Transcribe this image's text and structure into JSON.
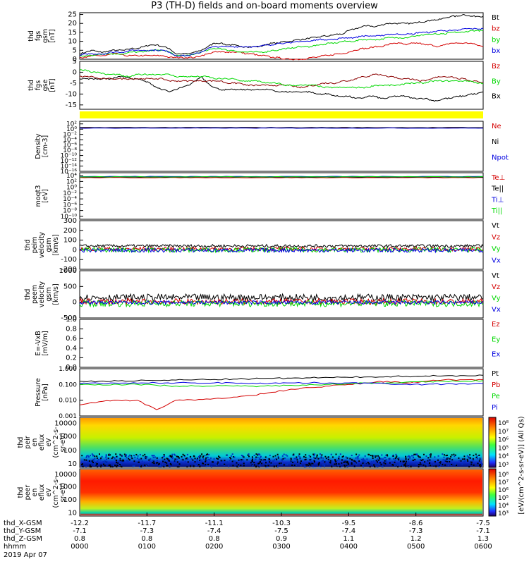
{
  "title": "P3 (TH-D) fields and on-board moments overview",
  "colors": {
    "black": "#000000",
    "red": "#d40000",
    "green": "#00d800",
    "blue": "#0000e0",
    "yellow": "#ffff00",
    "darkred": "#8b0000"
  },
  "chart_data": [
    {
      "id": "fgs-gsm",
      "type": "line",
      "ylabel": [
        "thd",
        "fgs",
        "gsm",
        "[nT]"
      ],
      "ylim": [
        0,
        26
      ],
      "yticks": [
        "0",
        "5",
        "10",
        "15",
        "20",
        "25"
      ],
      "legend": [
        {
          "name": "Bt",
          "color": "black"
        },
        {
          "name": "bz",
          "color": "red"
        },
        {
          "name": "by",
          "color": "green"
        },
        {
          "name": "bx",
          "color": "blue"
        }
      ],
      "series": [
        {
          "name": "Bt",
          "color": "black",
          "values": [
            3,
            4,
            5,
            4,
            4,
            5,
            5,
            5,
            6,
            6,
            7,
            8,
            8,
            7,
            6,
            3,
            3,
            3,
            4,
            5,
            7,
            9,
            9,
            8,
            8,
            7,
            7,
            7,
            7,
            8,
            9,
            9,
            10,
            10,
            11,
            11,
            12,
            12,
            13,
            13,
            14,
            14,
            16,
            17,
            18,
            19,
            18,
            19,
            20,
            20,
            20,
            20,
            20,
            21,
            21,
            22,
            22,
            23,
            24,
            24,
            25,
            24,
            24,
            24
          ]
        },
        {
          "name": "bz",
          "color": "red",
          "values": [
            1,
            1,
            2,
            2,
            2,
            3,
            3,
            2,
            2,
            2,
            2,
            2,
            2,
            2,
            1,
            1,
            1,
            1,
            1,
            2,
            3,
            4,
            4,
            4,
            4,
            4,
            3,
            3,
            2,
            2,
            1,
            1,
            0,
            0,
            0,
            0,
            1,
            1,
            2,
            2,
            3,
            3,
            4,
            5,
            6,
            6,
            7,
            7,
            8,
            9,
            9,
            8,
            9,
            9,
            8,
            8,
            7,
            8,
            9,
            9,
            9,
            9,
            8,
            7
          ]
        },
        {
          "name": "by",
          "color": "green",
          "values": [
            2,
            2,
            2,
            3,
            3,
            3,
            3,
            3,
            4,
            4,
            4,
            5,
            5,
            5,
            4,
            2,
            2,
            2,
            3,
            4,
            5,
            6,
            6,
            5,
            5,
            4,
            4,
            4,
            4,
            4,
            5,
            5,
            6,
            6,
            7,
            7,
            7,
            8,
            8,
            9,
            9,
            10,
            10,
            10,
            11,
            11,
            11,
            11,
            12,
            12,
            12,
            12,
            13,
            13,
            14,
            14,
            14,
            14,
            15,
            15,
            15,
            16,
            16,
            16
          ]
        },
        {
          "name": "bx",
          "color": "blue",
          "values": [
            2,
            3,
            3,
            3,
            3,
            4,
            4,
            4,
            5,
            5,
            5,
            5,
            5,
            5,
            4,
            2,
            2,
            2,
            3,
            4,
            6,
            7,
            7,
            7,
            7,
            7,
            7,
            7,
            7,
            8,
            8,
            9,
            9,
            9,
            10,
            10,
            10,
            11,
            11,
            11,
            11,
            12,
            12,
            12,
            13,
            13,
            13,
            13,
            14,
            14,
            14,
            14,
            14,
            15,
            15,
            15,
            16,
            16,
            16,
            16,
            17,
            17,
            17,
            17
          ]
        }
      ]
    },
    {
      "id": "fgs-gse",
      "type": "line",
      "ylabel": [
        "thd",
        "fgs",
        "gse",
        "[nT]"
      ],
      "ylim": [
        -17,
        5
      ],
      "yticks": [
        "-15",
        "-10",
        "-5",
        "0",
        "5"
      ],
      "legend": [
        {
          "name": "Bz",
          "color": "red"
        },
        {
          "name": "By",
          "color": "green"
        },
        {
          "name": "Bx",
          "color": "black"
        }
      ],
      "series": [
        {
          "name": "Bx",
          "color": "black",
          "values": [
            -3,
            -3,
            -3,
            -3,
            -3,
            -3,
            -2,
            -2,
            -3,
            -3,
            -4,
            -5,
            -7,
            -8,
            -9,
            -8,
            -7,
            -6,
            -4,
            -2,
            -5,
            -7,
            -8,
            -8,
            -8,
            -8,
            -8,
            -8,
            -8,
            -8,
            -8,
            -9,
            -9,
            -9,
            -9,
            -9,
            -9,
            -10,
            -10,
            -10,
            -11,
            -11,
            -11,
            -12,
            -12,
            -11,
            -11,
            -12,
            -12,
            -11,
            -11,
            -11,
            -12,
            -12,
            -12,
            -13,
            -13,
            -12,
            -12,
            -11,
            -11,
            -10,
            -10,
            -9
          ]
        },
        {
          "name": "Bz",
          "color": "darkred",
          "values": [
            -2,
            -2,
            -2,
            -3,
            -3,
            -3,
            -3,
            -3,
            -3,
            -3,
            -3,
            -3,
            -3,
            -3,
            -4,
            -4,
            -4,
            -4,
            -4,
            -4,
            -4,
            -4,
            -4,
            -5,
            -5,
            -5,
            -6,
            -6,
            -6,
            -6,
            -6,
            -6,
            -6,
            -6,
            -7,
            -7,
            -6,
            -6,
            -5,
            -5,
            -5,
            -4,
            -4,
            -3,
            -2,
            -2,
            -1,
            -1,
            -2,
            -2,
            -3,
            -3,
            -3,
            -4,
            -4,
            -3,
            -2,
            -2,
            -2,
            -3,
            -3,
            -4,
            -4,
            -5
          ]
        },
        {
          "name": "By",
          "color": "green",
          "values": [
            1,
            1,
            0,
            0,
            -1,
            -1,
            -1,
            -2,
            -2,
            -1,
            -1,
            -1,
            -1,
            -1,
            -1,
            -2,
            -2,
            -2,
            -2,
            -2,
            -2,
            -3,
            -3,
            -3,
            -3,
            -4,
            -4,
            -4,
            -4,
            -5,
            -5,
            -5,
            -6,
            -6,
            -6,
            -6,
            -6,
            -6,
            -7,
            -7,
            -7,
            -7,
            -7,
            -7,
            -7,
            -7,
            -6,
            -6,
            -6,
            -6,
            -6,
            -5,
            -5,
            -5,
            -5,
            -4,
            -4,
            -4,
            -4,
            -4,
            -4,
            -4,
            -5,
            -5
          ]
        }
      ]
    },
    {
      "id": "yellow-bar",
      "type": "bar"
    },
    {
      "id": "density",
      "type": "line",
      "scale": "log",
      "ylabel": [
        "Density",
        "[cm-3]"
      ],
      "ylim": [
        -16,
        3
      ],
      "yticks": [
        "10²",
        "10⁰",
        "10⁻²",
        "10⁻⁴",
        "10⁻⁶",
        "10⁻⁸",
        "10⁻¹⁰",
        "10⁻¹²",
        "10⁻¹⁴",
        "10⁻¹⁶"
      ],
      "ytickvals": [
        2,
        0,
        -2,
        -4,
        -6,
        -8,
        -10,
        -12,
        -14,
        -16
      ],
      "legend": [
        {
          "name": "Ne",
          "color": "red"
        },
        {
          "name": "Ni",
          "color": "black"
        },
        {
          "name": "Npot",
          "color": "blue"
        }
      ],
      "series": [
        {
          "name": "Ne",
          "color": "red",
          "values": [
            0.5
          ]
        },
        {
          "name": "Ni",
          "color": "black",
          "values": [
            0.6
          ]
        },
        {
          "name": "Npot",
          "color": "blue",
          "values": [
            0.4
          ]
        }
      ]
    },
    {
      "id": "temperature",
      "type": "line",
      "scale": "log",
      "ylabel": [
        "moqt3",
        "[eV]"
      ],
      "ylim": [
        -11,
        5
      ],
      "yticks": [
        "10⁴",
        "10²",
        "10⁰",
        "10⁻²",
        "10⁻⁴",
        "10⁻⁶",
        "10⁻⁸",
        "10⁻¹⁰"
      ],
      "ytickvals": [
        4,
        2,
        0,
        -2,
        -4,
        -6,
        -8,
        -10
      ],
      "legend": [
        {
          "name": "Te⊥",
          "color": "red"
        },
        {
          "name": "Te||",
          "color": "black"
        },
        {
          "name": "Ti⊥",
          "color": "blue"
        },
        {
          "name": "Ti||",
          "color": "green"
        }
      ],
      "series": [
        {
          "name": "Te",
          "color": "red",
          "values": [
            3.3
          ]
        },
        {
          "name": "Te||",
          "color": "black",
          "values": [
            3.5
          ]
        },
        {
          "name": "Ti",
          "color": "blue",
          "values": [
            3.7
          ]
        },
        {
          "name": "Ti||",
          "color": "green",
          "values": [
            3.6
          ]
        }
      ]
    },
    {
      "id": "peim-velocity",
      "type": "line",
      "ylabel": [
        "thd",
        "peim",
        "velocity",
        "gsm",
        "[km/s]"
      ],
      "ylim": [
        -200,
        300
      ],
      "yticks": [
        "-200",
        "-100",
        "0",
        "100",
        "200",
        "300"
      ],
      "legend": [
        {
          "name": "Vt",
          "color": "black"
        },
        {
          "name": "Vz",
          "color": "red"
        },
        {
          "name": "Vy",
          "color": "green"
        },
        {
          "name": "Vx",
          "color": "blue"
        }
      ],
      "series": [
        {
          "name": "Vt",
          "color": "black",
          "base": 40,
          "noise": 15
        },
        {
          "name": "Vz",
          "color": "red",
          "base": 10,
          "noise": 20
        },
        {
          "name": "Vy",
          "color": "green",
          "base": 0,
          "noise": 25
        },
        {
          "name": "Vx",
          "color": "blue",
          "base": -5,
          "noise": 20
        }
      ]
    },
    {
      "id": "peem-velocity",
      "type": "line",
      "ylabel": [
        "thd",
        "peem",
        "velocity",
        "gsm",
        "[km/s]"
      ],
      "ylim": [
        -500,
        1000
      ],
      "yticks": [
        "-500",
        "0",
        "500",
        "1000"
      ],
      "legend": [
        {
          "name": "Vt",
          "color": "black"
        },
        {
          "name": "Vz",
          "color": "red"
        },
        {
          "name": "Vy",
          "color": "green"
        },
        {
          "name": "Vx",
          "color": "blue"
        }
      ],
      "series": [
        {
          "name": "Vt",
          "color": "black",
          "base": 150,
          "noise": 110
        },
        {
          "name": "Vz",
          "color": "red",
          "base": 20,
          "noise": 90
        },
        {
          "name": "Vy",
          "color": "green",
          "base": -40,
          "noise": 100
        },
        {
          "name": "Vx",
          "color": "blue",
          "base": -10,
          "noise": 60
        }
      ]
    },
    {
      "id": "e-field",
      "type": "line",
      "ylabel": [
        "E=-VxB",
        "[mV/m]"
      ],
      "ylim": [
        0,
        1
      ],
      "yticks": [
        "0.0",
        "0.2",
        "0.4",
        "0.6",
        "0.8",
        "1.0"
      ],
      "legend": [
        {
          "name": "Ez",
          "color": "red"
        },
        {
          "name": "Ey",
          "color": "green"
        },
        {
          "name": "Ex",
          "color": "blue"
        }
      ],
      "series": []
    },
    {
      "id": "pressure",
      "type": "line",
      "scale": "log",
      "ylabel": [
        "Pressure",
        "[nPa]"
      ],
      "ylim": [
        -3,
        0
      ],
      "yticks": [
        "0.001",
        "0.010",
        "0.100",
        "1.000"
      ],
      "ytickvals": [
        -3,
        -2,
        -1,
        0
      ],
      "legend": [
        {
          "name": "Pt",
          "color": "black"
        },
        {
          "name": "Pb",
          "color": "red"
        },
        {
          "name": "Pe",
          "color": "green"
        },
        {
          "name": "Pi",
          "color": "blue"
        }
      ],
      "series": [
        {
          "name": "Pt",
          "color": "black",
          "values": [
            -0.8,
            -0.8,
            -0.78,
            -0.76,
            -0.75,
            -0.72,
            -0.7,
            -0.68,
            -0.66,
            -0.64,
            -0.62,
            -0.6,
            -0.58,
            -0.56,
            -0.55,
            -0.52,
            -0.5,
            -0.48,
            -0.46,
            -0.45,
            -0.44,
            -0.42
          ]
        },
        {
          "name": "Pb",
          "color": "red",
          "values": [
            -2.3,
            -2.1,
            -2.0,
            -2.0,
            -2.6,
            -2.0,
            -2.0,
            -1.9,
            -1.8,
            -1.7,
            -1.5,
            -1.3,
            -1.2,
            -1.1,
            -1.0,
            -0.9,
            -0.8,
            -0.9,
            -0.8,
            -0.7,
            -0.7,
            -0.7
          ]
        },
        {
          "name": "Pe",
          "color": "green",
          "values": [
            -1.0,
            -1.0,
            -1.0,
            -1.0,
            -1.05,
            -1.1,
            -1.1,
            -1.1,
            -1.1,
            -1.1,
            -1.1,
            -1.05,
            -1.0,
            -1.0,
            -0.95,
            -0.9,
            -0.9,
            -0.85,
            -0.85,
            -0.8,
            -0.8,
            -0.75
          ]
        },
        {
          "name": "Pi",
          "color": "blue",
          "values": [
            -0.95,
            -0.92,
            -0.92,
            -0.92,
            -0.9,
            -0.9,
            -0.9,
            -0.9,
            -0.9,
            -0.92,
            -0.92,
            -0.9,
            -0.9,
            -0.9,
            -0.9,
            -0.92,
            -0.95,
            -0.98,
            -1.0,
            -0.98,
            -0.95,
            -0.95
          ]
        }
      ]
    },
    {
      "id": "peir-spectrogram",
      "type": "heatmap",
      "ylabel": [
        "thd",
        "peir",
        "en",
        "eflux",
        "eV",
        "(cm^2-s-",
        "sr-eV)"
      ],
      "yticks": [
        "10000",
        "1000",
        "100",
        "10"
      ],
      "colorbar": {
        "label": "[eV/(cm^2-s-sr-eV)] (All Qs)",
        "ticks": [
          "10⁸",
          "10⁷",
          "10⁶",
          "10⁵",
          "10⁴",
          "10³"
        ]
      }
    },
    {
      "id": "peer-spectrogram",
      "type": "heatmap",
      "ylabel": [
        "thd",
        "peer",
        "en",
        "eflux",
        "eV",
        "(cm^2-s-",
        "sr-eV)"
      ],
      "yticks": [
        "10000",
        "1000",
        "100",
        "10"
      ],
      "colorbar": {
        "ticks": [
          "10⁸",
          "10⁷",
          "10⁶",
          "10⁵",
          "10⁴",
          "10³"
        ]
      }
    }
  ],
  "xaxis": {
    "rows": [
      {
        "label": "thd_X-GSM",
        "values": [
          "-12.2",
          "-11.7",
          "-11.1",
          "-10.3",
          "-9.5",
          "-8.6",
          "-7.5"
        ]
      },
      {
        "label": "thd_Y-GSM",
        "values": [
          "-7.1",
          "-7.3",
          "-7.4",
          "-7.5",
          "-7.4",
          "-7.3",
          "-7.1"
        ]
      },
      {
        "label": "thd_Z-GSM",
        "values": [
          "0.8",
          "0.8",
          "0.8",
          "0.9",
          "1.1",
          "1.2",
          "1.3"
        ]
      },
      {
        "label": "hhmm",
        "values": [
          "0000",
          "0100",
          "0200",
          "0300",
          "0400",
          "0500",
          "0600"
        ]
      }
    ],
    "date": "2019 Apr 07"
  }
}
